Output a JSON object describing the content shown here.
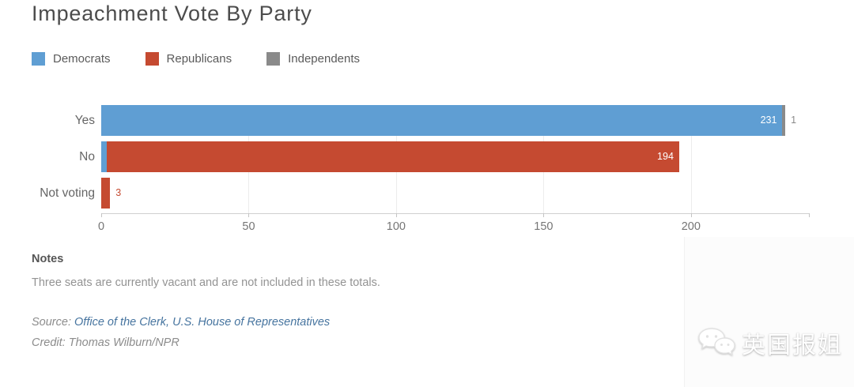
{
  "title": "Impeachment Vote By Party",
  "chart_data": {
    "type": "bar",
    "orientation": "horizontal",
    "stacked": true,
    "title": "Impeachment Vote By Party",
    "categories": [
      "Yes",
      "No",
      "Not voting"
    ],
    "series": [
      {
        "name": "Democrats",
        "color": "#5f9ed3",
        "values": [
          231,
          2,
          0
        ]
      },
      {
        "name": "Republicans",
        "color": "#c54a31",
        "values": [
          0,
          194,
          3
        ]
      },
      {
        "name": "Independents",
        "color": "#8a8a8a",
        "values": [
          1,
          0,
          0
        ]
      }
    ],
    "xticks": [
      0,
      50,
      100,
      150,
      200
    ],
    "xmax": 240,
    "xlabel": "",
    "ylabel": "",
    "grid": true,
    "legend_position": "top-left",
    "bar_label_color_inside": "#ffffff"
  },
  "notes": {
    "heading": "Notes",
    "text": "Three seats are currently vacant and are not included in these totals."
  },
  "source": {
    "prefix": "Source:",
    "link_text": "Office of the Clerk, U.S. House of Representatives",
    "link_color": "#46749f"
  },
  "credit": "Credit: Thomas Wilburn/NPR",
  "watermark": {
    "text": "英国报姐",
    "logo": "wechat-bubbles-icon"
  }
}
